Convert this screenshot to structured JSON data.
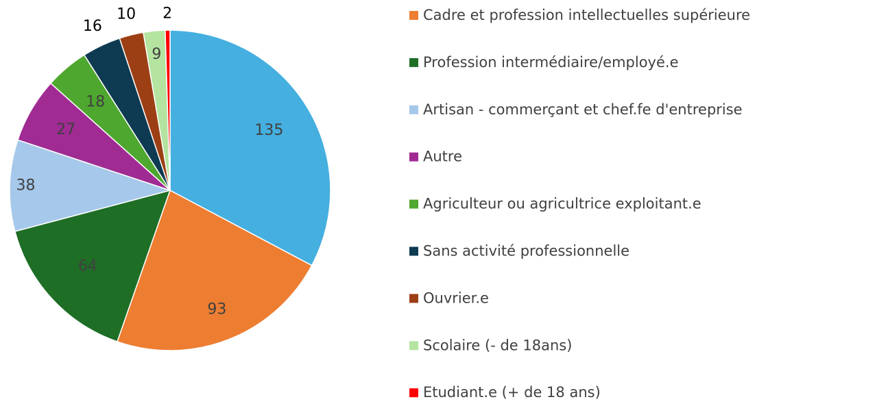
{
  "chart_data": {
    "type": "pie",
    "categories": [
      null,
      "Cadre et profession intellectuelles supérieure",
      "Profession intermédiaire/employé.e",
      "Artisan - commerçant et chef.fe d'entreprise",
      "Autre",
      "Agriculteur ou agricultrice exploitant.e",
      "Sans activité professionnelle",
      "Ouvrier.e",
      "Scolaire (- de 18ans)",
      "Etudiant.e (+ de 18 ans)"
    ],
    "values": [
      135,
      93,
      64,
      38,
      27,
      18,
      16,
      10,
      9,
      2
    ],
    "colors": [
      "#45afe0",
      "#ed7d31",
      "#1e6e26",
      "#a6c8ea",
      "#a02b93",
      "#4ea72e",
      "#0e3a52",
      "#9c3f14",
      "#b4e4a0",
      "#ff0000"
    ],
    "legend": "right"
  }
}
